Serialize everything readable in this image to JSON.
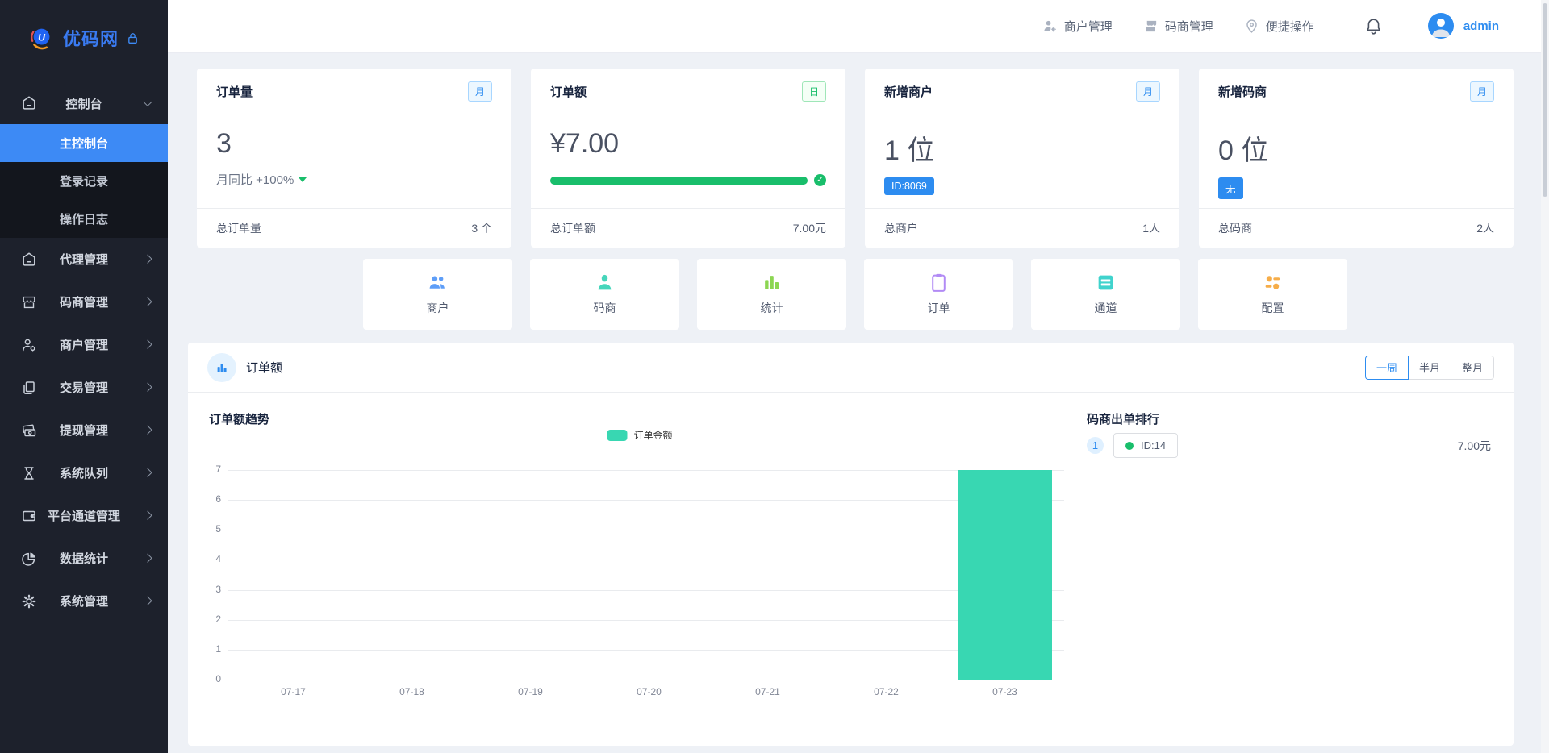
{
  "app": {
    "logo_text": "优码网"
  },
  "header": {
    "links": [
      {
        "label": "商户管理"
      },
      {
        "label": "码商管理"
      },
      {
        "label": "便捷操作"
      }
    ],
    "username": "admin"
  },
  "sidebar": {
    "root": {
      "label": "控制台"
    },
    "children": [
      {
        "label": "主控制台",
        "active": true
      },
      {
        "label": "登录记录",
        "active": false
      },
      {
        "label": "操作日志",
        "active": false
      }
    ],
    "items": [
      {
        "label": "代理管理"
      },
      {
        "label": "码商管理"
      },
      {
        "label": "商户管理"
      },
      {
        "label": "交易管理"
      },
      {
        "label": "提现管理"
      },
      {
        "label": "系统队列"
      },
      {
        "label": "平台通道管理"
      },
      {
        "label": "数据统计"
      },
      {
        "label": "系统管理"
      }
    ]
  },
  "cards": [
    {
      "title": "订单量",
      "period": "月",
      "value": "3",
      "subtitle": "月同比 +100%",
      "footer_label": "总订单量",
      "footer_value": "3 个"
    },
    {
      "title": "订单额",
      "period": "日",
      "value": "¥7.00",
      "progress_percent": 100,
      "footer_label": "总订单额",
      "footer_value": "7.00元"
    },
    {
      "title": "新增商户",
      "period": "月",
      "value": "1 位",
      "tag": "ID:8069",
      "footer_label": "总商户",
      "footer_value": "1人"
    },
    {
      "title": "新增码商",
      "period": "月",
      "value": "0 位",
      "tag": "无",
      "footer_label": "总码商",
      "footer_value": "2人"
    }
  ],
  "shortcuts": [
    {
      "label": "商户",
      "color": "#5e9ef8"
    },
    {
      "label": "码商",
      "color": "#46d6bb"
    },
    {
      "label": "统计",
      "color": "#8cd652"
    },
    {
      "label": "订单",
      "color": "#b28bf5"
    },
    {
      "label": "通道",
      "color": "#40d3cd"
    },
    {
      "label": "配置",
      "color": "#f6ad49"
    }
  ],
  "chart_section": {
    "title": "订单额",
    "tabs": [
      {
        "label": "一周",
        "active": true
      },
      {
        "label": "半月",
        "active": false
      },
      {
        "label": "整月",
        "active": false
      }
    ],
    "ranking": {
      "title": "码商出单排行",
      "rows": [
        {
          "rank": "1",
          "label": "ID:14",
          "value": "7.00元",
          "dot_color": "#19be6b"
        }
      ]
    }
  },
  "chart_data": {
    "type": "bar",
    "title": "订单额趋势",
    "legend": [
      "订单金额"
    ],
    "categories": [
      "07-17",
      "07-18",
      "07-19",
      "07-20",
      "07-21",
      "07-22",
      "07-23"
    ],
    "values": [
      0,
      0,
      0,
      0,
      0,
      0,
      7
    ],
    "ylim": [
      0,
      7
    ],
    "yticks": [
      0,
      1,
      2,
      3,
      4,
      5,
      6,
      7
    ],
    "bar_color": "#38d7b2",
    "grid": true,
    "legend_position": "top-center"
  },
  "colors": {
    "primary": "#2d8cf0",
    "success": "#19be6b",
    "sidebar_active": "#3d8af5"
  }
}
